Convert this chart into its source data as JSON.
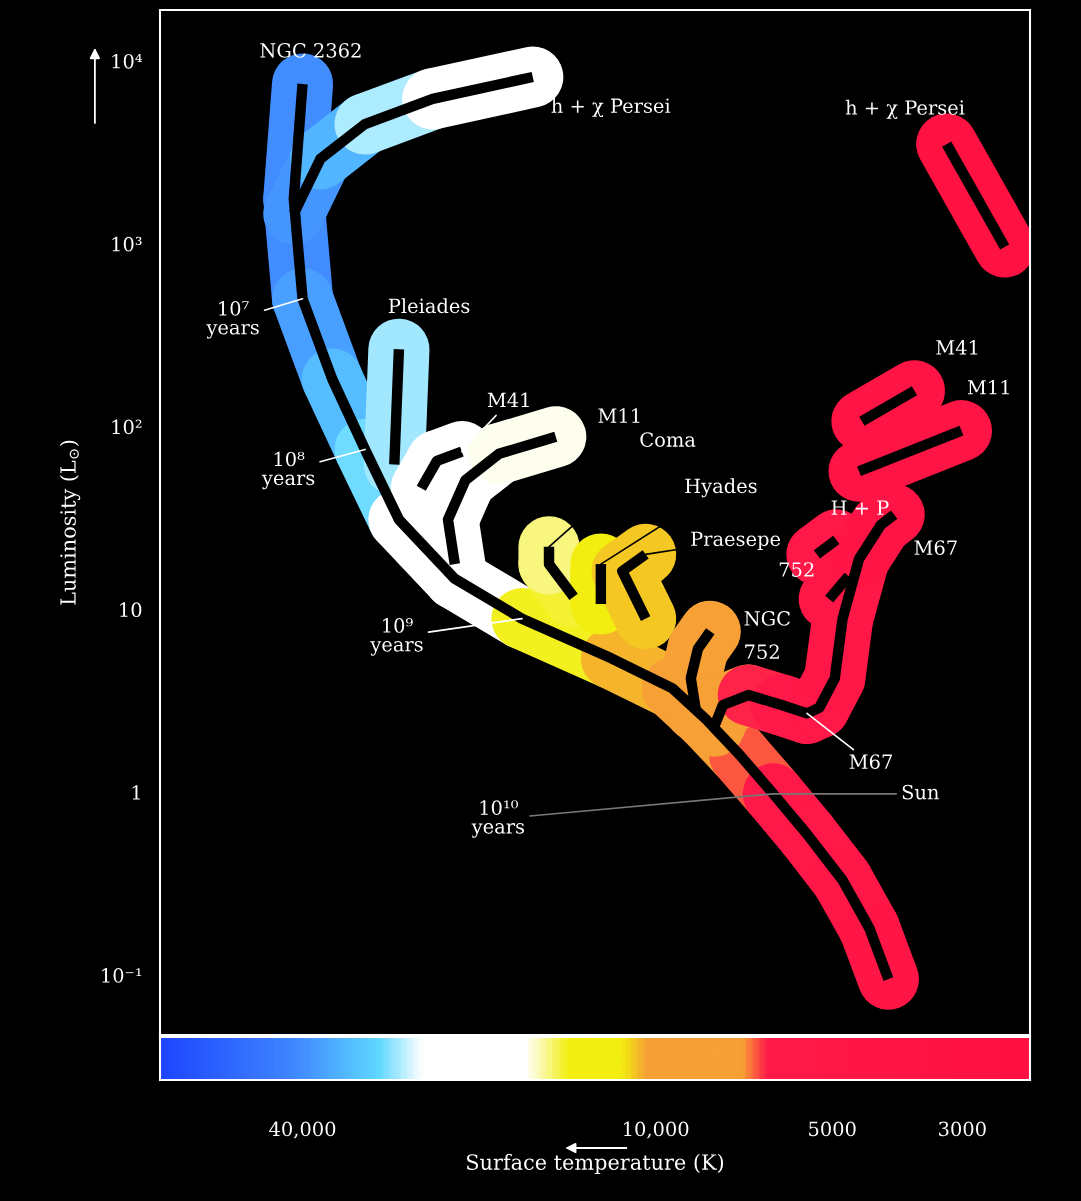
{
  "chart_data": {
    "type": "line",
    "xlabel": "Surface temperature (K)",
    "ylabel": "Luminosity (L$_{⊙}$)",
    "log": "xy",
    "xlim": [
      70000,
      2300
    ],
    "ylim": [
      0.047,
      19000
    ],
    "xticks": [
      {
        "value": 40000,
        "label": "40,000"
      },
      {
        "value": 10000,
        "label": "10,000"
      },
      5000,
      3000
    ],
    "yticks": [
      {
        "value": 0.1,
        "label": "10⁻¹"
      },
      1,
      10,
      {
        "value": 100,
        "label": "10²"
      },
      {
        "value": 1000,
        "label": "10³"
      },
      {
        "value": 10000,
        "label": "10⁴"
      }
    ],
    "line_style": "solid",
    "series": [
      {
        "color": "#000000",
        "x": [
          40000,
          41400,
          40000,
          35600,
          31300,
          27400,
          22000,
          16900,
          11900,
          9360,
          8200,
          7190,
          6300,
          5520,
          4800,
          4320,
          4010
        ],
        "values": [
          7480,
          1760,
          500,
          182,
          75,
          31,
          14.7,
          8.9,
          5.4,
          3.7,
          2.5,
          1.6,
          0.98,
          0.59,
          0.33,
          0.18,
          0.095
        ]
      },
      {
        "color": "#000000",
        "x": [
          41400,
          37300,
          31300,
          24000,
          16200
        ],
        "values": [
          1460,
          2910,
          4520,
          6200,
          8170
        ]
      },
      {
        "color": "#000000",
        "x": [
          3190,
          2540
        ],
        "values": [
          3510,
          960
        ]
      },
      {
        "color": "#000000",
        "x": [
          27400,
          27900
        ],
        "values": [
          265,
          62
        ]
      },
      {
        "color": "#000000",
        "x": [
          25100,
          23600,
          21400
        ],
        "values": [
          46,
          65,
          73
        ]
      },
      {
        "color": "#000000",
        "x": [
          4450,
          3620
        ],
        "values": [
          107,
          157
        ]
      },
      {
        "color": "#000000",
        "x": [
          22000,
          22600,
          21100,
          18500,
          14800
        ],
        "values": [
          17.7,
          31,
          51,
          71,
          88
        ]
      },
      {
        "color": "#000000",
        "x": [
          4500,
          3010
        ],
        "values": [
          57,
          95
        ]
      },
      {
        "color": "#000000",
        "x": [
          13800,
          15200,
          15200
        ],
        "values": [
          11.7,
          17.7,
          22
        ]
      },
      {
        "color": "#000000",
        "x": [
          12400,
          12400
        ],
        "values": [
          10.7,
          17.7
        ]
      },
      {
        "color": "#000000",
        "x": [
          10400,
          11400,
          10400
        ],
        "values": [
          8.9,
          16.2,
          20
        ]
      },
      {
        "color": "#000000",
        "x": [
          8540,
          8710,
          8470,
          8070
        ],
        "values": [
          2.8,
          4.2,
          6.1,
          7.6
        ]
      },
      {
        "color": "#000000",
        "x": [
          5310,
          4920
        ],
        "values": [
          20,
          24
        ]
      },
      {
        "color": "#000000",
        "x": [
          5060,
          4690
        ],
        "values": [
          11.4,
          15.2
        ]
      },
      {
        "color": "#000000",
        "x": [
          7940,
          7680,
          6950,
          6100,
          5520,
          5260,
          4950,
          4800,
          4500,
          4130,
          3920
        ],
        "values": [
          2.3,
          3.0,
          3.4,
          3.0,
          2.7,
          2.9,
          4.2,
          8.9,
          18.9,
          29,
          33
        ]
      }
    ],
    "annotations": [
      {
        "text": "NGC 2362",
        "x": 40000,
        "y": 7480
      },
      {
        "text": "h + χ Persei",
        "x": 16200,
        "y": 8170
      },
      {
        "text": "h + χ Persei",
        "x": 3190,
        "y": 3510
      },
      {
        "text": "Pleiades",
        "x": 27400,
        "y": 265
      },
      {
        "text": "M41",
        "x": 21400,
        "y": 73
      },
      {
        "text": "M41",
        "x": 3620,
        "y": 157
      },
      {
        "text": "M11",
        "x": 14800,
        "y": 88
      },
      {
        "text": "M11",
        "x": 3010,
        "y": 95
      },
      {
        "text": "Coma",
        "x": 15200,
        "y": 22
      },
      {
        "text": "Hyades",
        "x": 12400,
        "y": 17.7
      },
      {
        "text": "Praesepe",
        "x": 10400,
        "y": 20
      },
      {
        "text": "NGC",
        "x": 8070,
        "y": 7.6
      },
      {
        "text": "752",
        "x": 8070,
        "y": 7.6
      },
      {
        "text": "H + P",
        "x": 4920,
        "y": 24
      },
      {
        "text": "752",
        "x": 5060,
        "y": 11.4
      },
      {
        "text": "M67",
        "x": 5520,
        "y": 2.7
      },
      {
        "text": "M67",
        "x": 3920,
        "y": 33
      },
      {
        "text": "10⁷\nyears",
        "x": 40000,
        "y": 500
      },
      {
        "text": "10⁸\nyears",
        "x": 31300,
        "y": 75
      },
      {
        "text": "10⁹\nyears",
        "x": 16900,
        "y": 8.9
      },
      {
        "text": "10¹⁰\nyears",
        "x": 6300,
        "y": 0.98
      },
      {
        "text": "Sun",
        "x": 6300,
        "y": 0.98
      }
    ]
  }
}
